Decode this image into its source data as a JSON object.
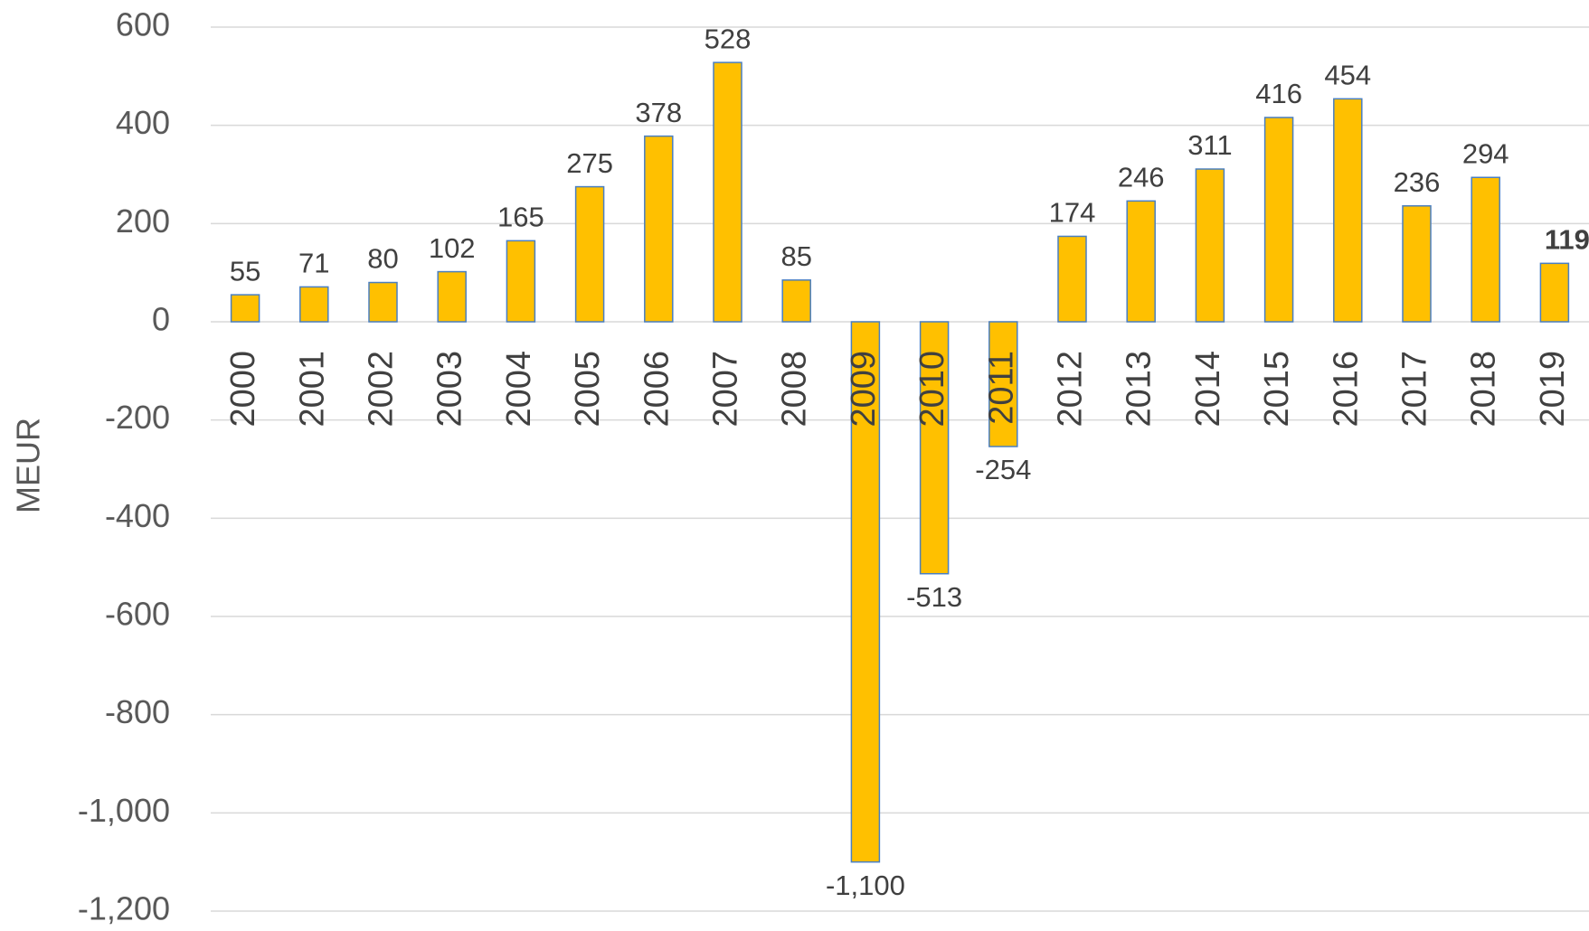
{
  "chart_data": {
    "type": "bar",
    "ylabel": "MEUR",
    "categories": [
      "2000",
      "2001",
      "2002",
      "2003",
      "2004",
      "2005",
      "2006",
      "2007",
      "2008",
      "2009",
      "2010",
      "2011",
      "2012",
      "2013",
      "2014",
      "2015",
      "2016",
      "2017",
      "2018",
      "2019"
    ],
    "values": [
      55,
      71,
      80,
      102,
      165,
      275,
      378,
      528,
      85,
      -1100,
      -513,
      -254,
      174,
      246,
      311,
      416,
      454,
      236,
      294,
      119
    ],
    "value_labels": [
      "55",
      "71",
      "80",
      "102",
      "165",
      "275",
      "378",
      "528",
      "85",
      "-1,100",
      "-513",
      "-254",
      "174",
      "246",
      "311",
      "416",
      "454",
      "236",
      "294",
      "119"
    ],
    "color": "#ffc000",
    "ylim": [
      -1200,
      600
    ],
    "yticks": [
      {
        "value": -1200,
        "label": "-1,200"
      },
      {
        "value": -1000,
        "label": "-1,000"
      },
      -800,
      -600,
      -400,
      -200,
      0,
      200,
      400,
      600
    ],
    "grid": true
  }
}
